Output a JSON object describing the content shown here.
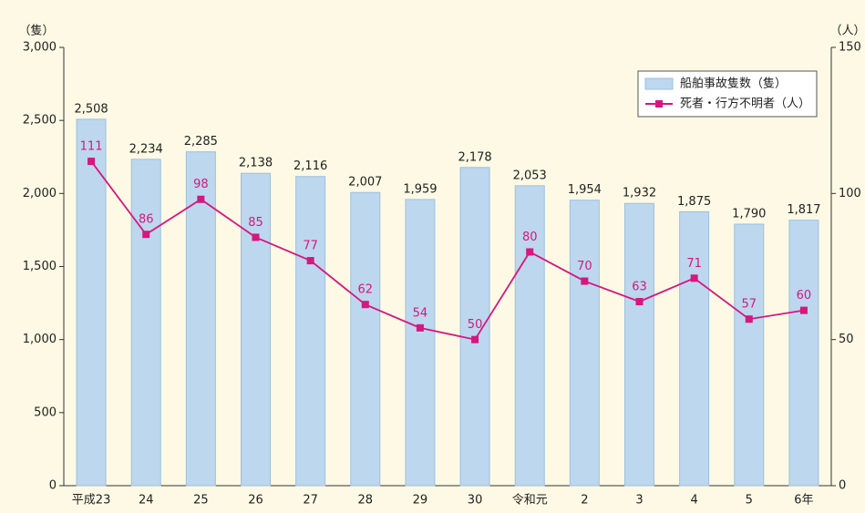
{
  "chart_data": {
    "type": "bar",
    "y_label": "（隻）",
    "y2_label": "（人）",
    "categories": [
      "平成23",
      "24",
      "25",
      "26",
      "27",
      "28",
      "29",
      "30",
      "令和元",
      "2",
      "3",
      "4",
      "5",
      "6年"
    ],
    "series": [
      {
        "name": "船舶事故隻数（隻）",
        "type": "bar",
        "color": "#bdd7ee",
        "values": [
          2508,
          2234,
          2285,
          2138,
          2116,
          2007,
          1959,
          2178,
          2053,
          1954,
          1932,
          1875,
          1790,
          1817
        ],
        "value_labels": [
          "2,508",
          "2,234",
          "2,285",
          "2,138",
          "2,116",
          "2,007",
          "1,959",
          "2,178",
          "2,053",
          "1,954",
          "1,932",
          "1,875",
          "1,790",
          "1,817"
        ]
      },
      {
        "name": "死者・行方不明者（人）",
        "type": "line",
        "color": "#d6177f",
        "axis": "y2",
        "values": [
          111,
          86,
          98,
          85,
          77,
          62,
          54,
          50,
          80,
          70,
          63,
          71,
          57,
          60
        ]
      }
    ],
    "ylim": [
      0,
      3000
    ],
    "yticks": [
      0,
      500,
      {
        "value": 1000,
        "label": "1,000"
      },
      {
        "value": 1500,
        "label": "1,500"
      },
      {
        "value": 2000,
        "label": "2,000"
      },
      {
        "value": 2500,
        "label": "2,500"
      },
      {
        "value": 3000,
        "label": "3,000"
      }
    ],
    "y2lim": [
      0,
      150
    ],
    "y2ticks": [
      0,
      50,
      100,
      150
    ],
    "legend": "upper right"
  }
}
